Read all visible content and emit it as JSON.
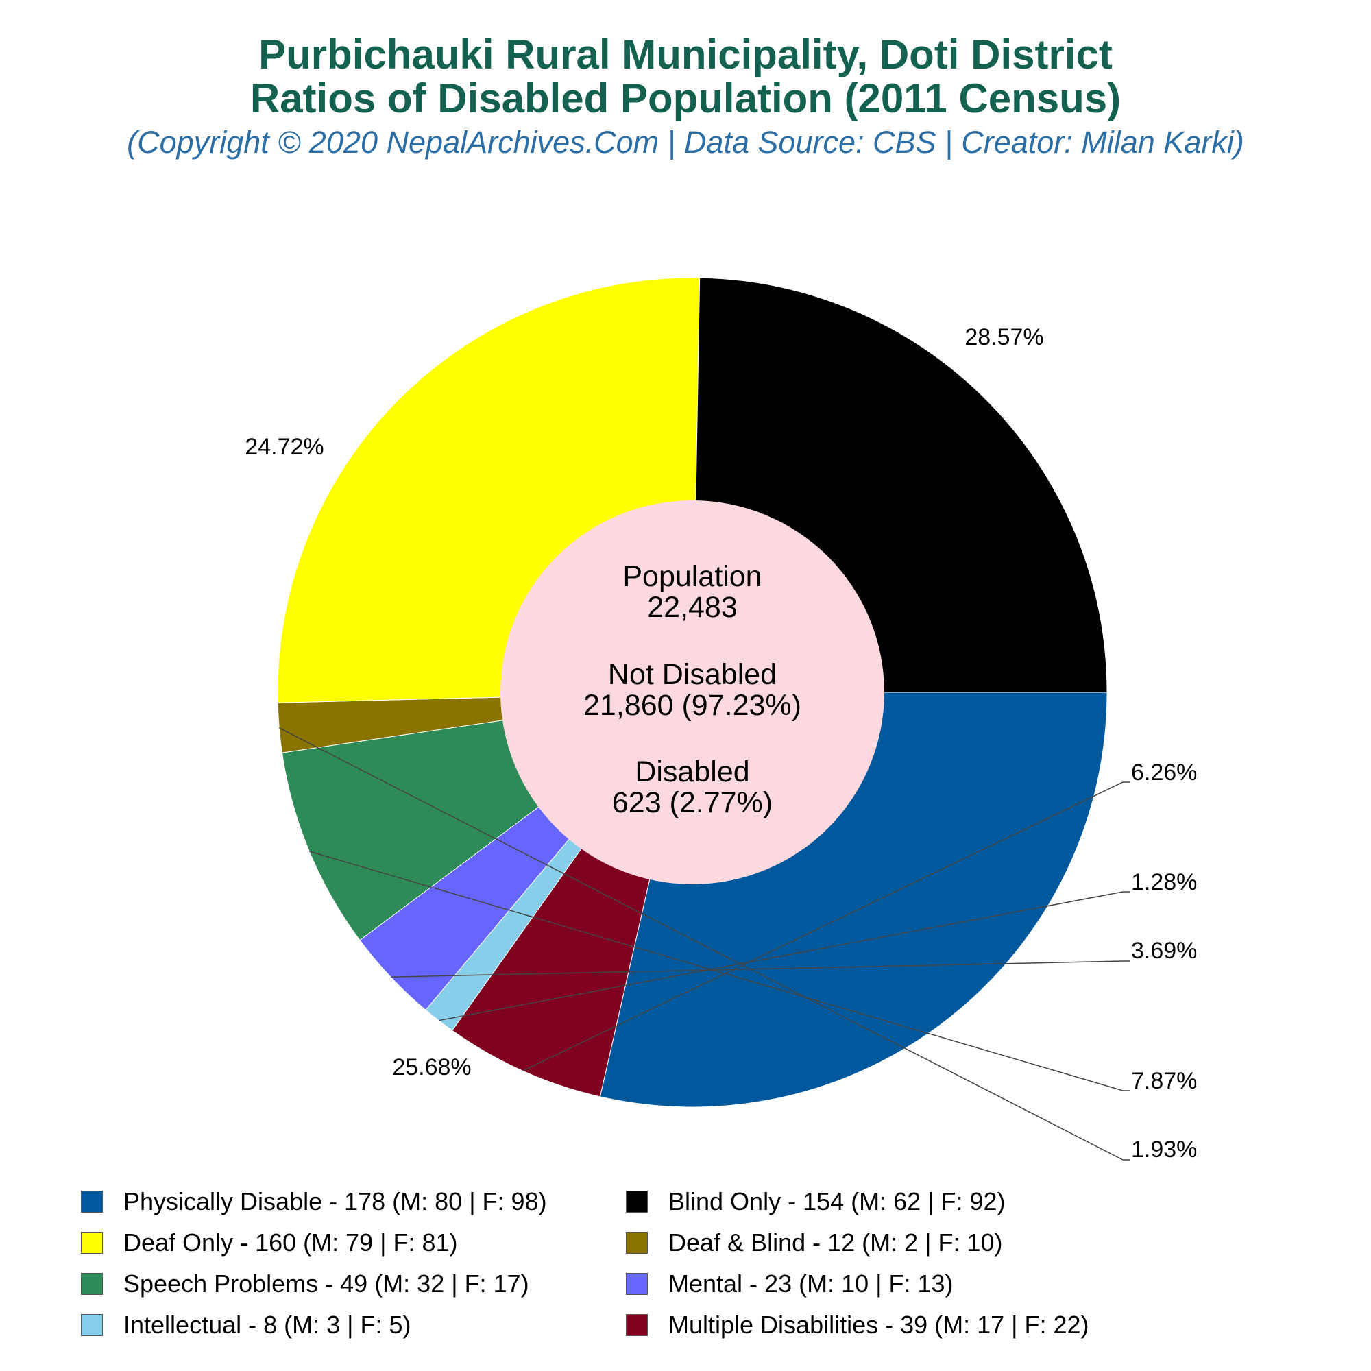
{
  "title_line1": "Purbichauki Rural Municipality, Doti District",
  "title_line2": "Ratios of Disabled Population (2011 Census)",
  "subtitle": "(Copyright © 2020 NepalArchives.Com | Data Source: CBS | Creator: Milan Karki)",
  "center": {
    "population_label": "Population",
    "population_value": "22,483",
    "not_disabled_label": "Not Disabled",
    "not_disabled_value": "21,860 (97.23%)",
    "disabled_label": "Disabled",
    "disabled_value": "623 (2.77%)"
  },
  "chart_data": {
    "type": "pie",
    "center_color": "#fcd8df",
    "slices": [
      {
        "legend": "Physically Disable - 178 (M: 80 | F: 98)",
        "value": 178,
        "pct_label": "28.57%",
        "color": "#00599d"
      },
      {
        "legend": "Multiple Disabilities - 39 (M: 17 | F: 22)",
        "value": 39,
        "pct_label": "6.26%",
        "color": "#800020"
      },
      {
        "legend": "Intellectual - 8 (M: 3 | F: 5)",
        "value": 8,
        "pct_label": "1.28%",
        "color": "#87ceeb"
      },
      {
        "legend": "Mental - 23 (M: 10 | F: 13)",
        "value": 23,
        "pct_label": "3.69%",
        "color": "#6666ff"
      },
      {
        "legend": "Speech Problems - 49 (M: 32 | F: 17)",
        "value": 49,
        "pct_label": "7.87%",
        "color": "#2e8b57"
      },
      {
        "legend": "Deaf & Blind - 12 (M: 2 | F: 10)",
        "value": 12,
        "pct_label": "1.93%",
        "color": "#8b7300"
      },
      {
        "legend": "Deaf Only - 160 (M: 79 | F: 81)",
        "value": 160,
        "pct_label": "25.68%",
        "color": "#ffff00"
      },
      {
        "legend": "Blind Only - 154 (M: 62 | F: 92)",
        "value": 154,
        "pct_label": "24.72%",
        "color": "#000000"
      }
    ],
    "legend_order": [
      0,
      7,
      6,
      5,
      4,
      3,
      2,
      1
    ]
  }
}
